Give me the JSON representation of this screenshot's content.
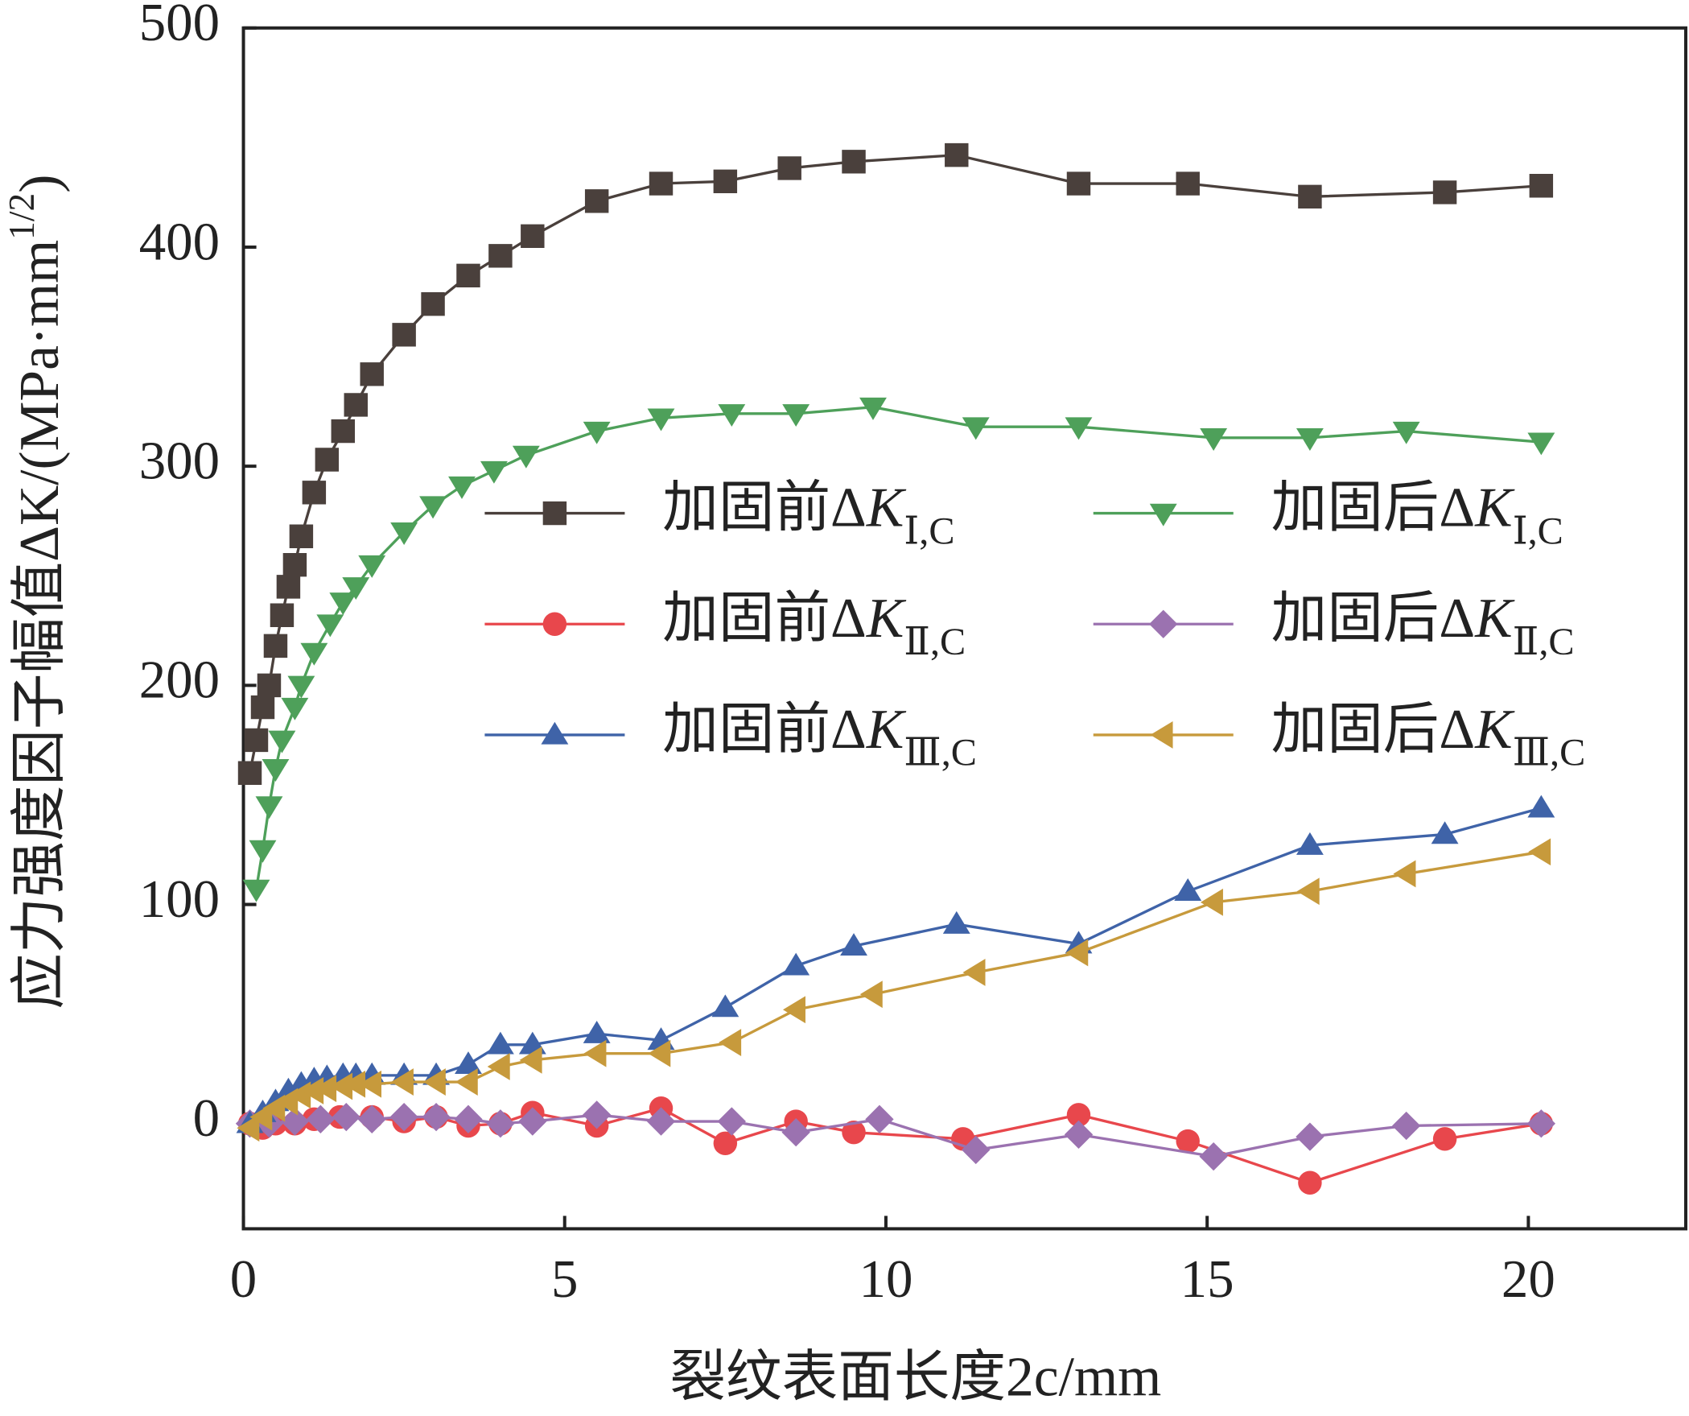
{
  "chart_data": {
    "type": "line",
    "xlabel": "裂纹表面长度2c/mm",
    "ylabel": "应力强度因子幅值ΔK/(MPa·mm1/2)",
    "xlim": [
      0,
      22.45
    ],
    "ylim": [
      -48,
      500
    ],
    "xticks": [
      0,
      5,
      10,
      15,
      20
    ],
    "yticks": [
      0,
      100,
      200,
      300,
      400,
      500
    ],
    "legend": "upper center",
    "series": [
      {
        "name": "加固前ΔKⅠ,C",
        "color": "#4a403c",
        "marker": "square",
        "x": [
          0.1,
          0.2,
          0.3,
          0.4,
          0.5,
          0.6,
          0.7,
          0.8,
          0.9,
          1.1,
          1.3,
          1.55,
          1.75,
          2.0,
          2.5,
          2.95,
          3.5,
          4.0,
          4.5,
          5.5,
          6.5,
          7.5,
          8.5,
          9.5,
          11.1,
          13,
          14.7,
          16.6,
          18.7,
          20.2
        ],
        "values": [
          160,
          175,
          190,
          200,
          218,
          232,
          245,
          255,
          268,
          288,
          303,
          316,
          328,
          342,
          360,
          374,
          387,
          396,
          405,
          421,
          429,
          430,
          436,
          439,
          442,
          429,
          429,
          423,
          425,
          428
        ]
      },
      {
        "name": "加固后ΔKⅠ,C",
        "color": "#4ea05a",
        "marker": "tri-down",
        "x": [
          0.2,
          0.3,
          0.4,
          0.5,
          0.6,
          0.8,
          0.9,
          1.1,
          1.35,
          1.55,
          1.75,
          2.0,
          2.5,
          2.95,
          3.4,
          3.9,
          4.4,
          5.5,
          6.5,
          7.6,
          8.6,
          9.8,
          11.4,
          13,
          15.1,
          16.6,
          18.1,
          20.2
        ],
        "values": [
          107,
          125,
          145,
          162,
          175,
          190,
          200,
          215,
          228,
          238,
          245,
          255,
          270,
          282,
          291,
          298,
          305,
          316,
          322,
          324,
          324,
          327,
          318,
          318,
          313,
          313,
          316,
          311
        ]
      },
      {
        "name": "加固前ΔKⅡ,C",
        "color": "#e8474c",
        "marker": "circle",
        "x": [
          0.1,
          0.3,
          0.5,
          0.8,
          1.1,
          1.5,
          2.0,
          2.5,
          3.0,
          3.5,
          4.0,
          4.5,
          5.5,
          6.5,
          7.5,
          8.6,
          9.5,
          11.2,
          13,
          14.7,
          16.6,
          18.7,
          20.2
        ],
        "values": [
          0,
          -2,
          0,
          0,
          2,
          3,
          3,
          1,
          3,
          -1,
          0,
          5,
          -1,
          7,
          -9,
          1,
          -4,
          -7,
          4,
          -8,
          -27,
          -7,
          0
        ]
      },
      {
        "name": "加固后ΔKⅡ,C",
        "color": "#9b72b0",
        "marker": "diamond",
        "x": [
          0.1,
          0.4,
          0.8,
          1.2,
          1.6,
          2.0,
          2.5,
          3.0,
          3.5,
          4.0,
          4.5,
          5.5,
          6.5,
          7.6,
          8.6,
          9.9,
          11.4,
          13,
          15.1,
          16.6,
          18.1,
          20.2
        ],
        "values": [
          0,
          0,
          1,
          2,
          3,
          2,
          3,
          3,
          2,
          0,
          1,
          4,
          1,
          1,
          -4,
          2,
          -12,
          -5,
          -15,
          -6,
          -1,
          0
        ]
      },
      {
        "name": "加固前ΔKⅢ,C",
        "color": "#3f63a8",
        "marker": "tri-up",
        "x": [
          0.1,
          0.3,
          0.5,
          0.7,
          0.9,
          1.1,
          1.3,
          1.55,
          1.75,
          2.0,
          2.5,
          3.0,
          3.5,
          4.0,
          4.5,
          5.5,
          6.5,
          7.5,
          8.6,
          9.5,
          11.1,
          13,
          14.7,
          16.6,
          18.7,
          20.2
        ],
        "values": [
          0,
          5,
          10,
          15,
          18,
          20,
          21,
          22,
          22,
          22,
          22,
          22,
          27,
          36,
          36,
          41,
          38,
          53,
          72,
          81,
          91,
          82,
          106,
          127,
          132,
          144
        ]
      },
      {
        "name": "加固后ΔKⅢ,C",
        "color": "#c79a3c",
        "marker": "tri-left",
        "x": [
          0.1,
          0.3,
          0.5,
          0.7,
          0.9,
          1.1,
          1.3,
          1.55,
          1.75,
          2.0,
          2.5,
          3.0,
          3.5,
          4.0,
          4.5,
          5.5,
          6.5,
          7.6,
          8.6,
          9.8,
          11.4,
          13,
          15.1,
          16.6,
          18.1,
          20.2
        ],
        "values": [
          -2,
          3,
          7,
          10,
          13,
          15,
          16,
          17,
          18,
          18,
          19,
          19,
          19,
          26,
          29,
          32,
          32,
          37,
          52,
          59,
          69,
          78,
          101,
          106,
          114,
          124
        ]
      }
    ]
  }
}
